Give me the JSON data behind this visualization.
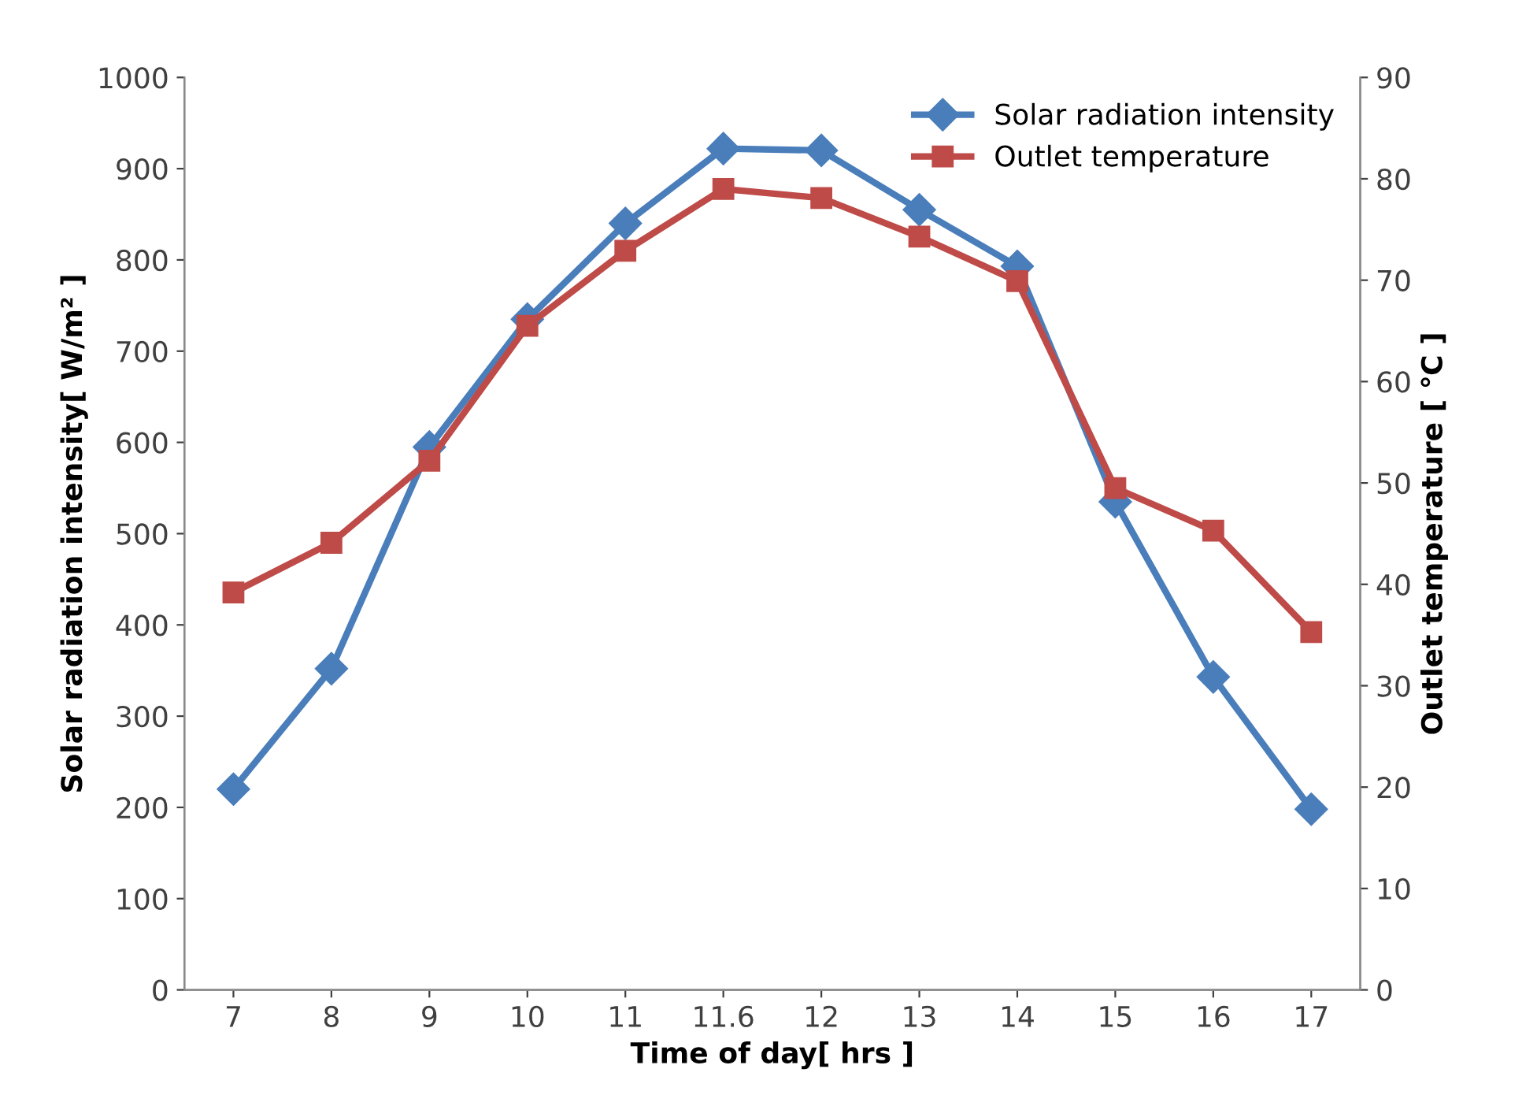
{
  "chart_data": {
    "type": "line",
    "xlabel": "Time of day[ hrs ]",
    "ylabel": "Solar radiation intensity[ W/m² ]",
    "y2label": "Outlet temperature [ ℃ ]",
    "categories": [
      "7",
      "8",
      "9",
      "10",
      "11",
      "11.6",
      "12",
      "13",
      "14",
      "15",
      "16",
      "17"
    ],
    "series": [
      {
        "name": "Solar radiation intensity",
        "color": "#4a7ebb",
        "marker": "diamond",
        "values": [
          220,
          352,
          595,
          735,
          840,
          922,
          920,
          855,
          793,
          535,
          343,
          198
        ]
      },
      {
        "name": "Outlet temperature",
        "color": "#be4b48",
        "marker": "square",
        "axis": "y2",
        "values": [
          39.2,
          44.1,
          52.2,
          65.5,
          72.9,
          79.0,
          78.1,
          74.3,
          69.9,
          49.5,
          45.3,
          35.3
        ]
      }
    ],
    "ylim": [
      0,
      1000
    ],
    "yticks": [
      0,
      100,
      200,
      300,
      400,
      500,
      600,
      700,
      800,
      900,
      1000
    ],
    "y2lim": [
      0,
      90
    ],
    "y2ticks": [
      0,
      10,
      20,
      30,
      40,
      50,
      60,
      70,
      80,
      90
    ],
    "grid": false,
    "legend": "top right",
    "line_style": "solid"
  }
}
